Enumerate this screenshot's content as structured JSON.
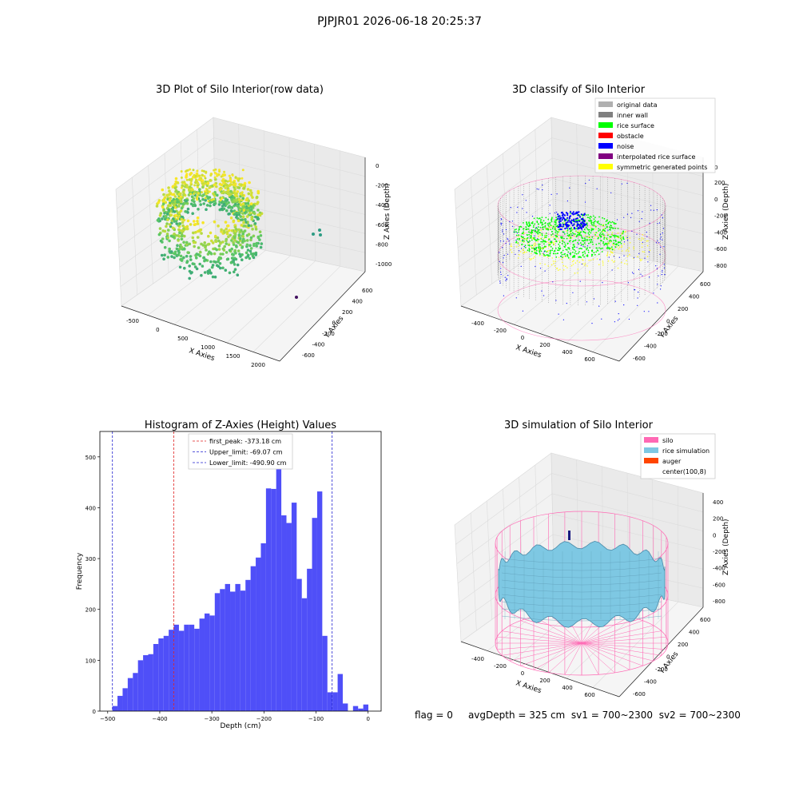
{
  "figure_title": "PJPJR01 2026-06-18 20:25:37",
  "status": {
    "flag": "flag = 0",
    "avg_depth": "avgDepth = 325 cm",
    "sv1": "sv1 = 700~2300",
    "sv2": "sv2 = 700~2300"
  },
  "colors": {
    "hist_bar": "#4f4ff8",
    "first_peak_line": "#e02020",
    "limit_line": "#2020d0",
    "silo_wire": "#ff69b4",
    "rice": "#7ec8e3",
    "auger": "#ff4500",
    "inner_wall": "#808080",
    "rice_surface": "#00ff00",
    "noise": "#0000ff",
    "obstacle": "#ff0000",
    "original_data": "#b0b0b0",
    "interpolated": "#800080",
    "symmetric": "#ffff00"
  },
  "chart_data": [
    {
      "type": "scatter",
      "subtype": "3d",
      "title": "3D Plot of Silo Interior(row data)",
      "xlabel": "X Axies",
      "ylabel": "Y Axies",
      "zlabel": "Z Axies (Depth)",
      "x_ticks": [
        "-500",
        "0",
        "500",
        "1000",
        "1500",
        "2000"
      ],
      "y_ticks": [
        "600",
        "400",
        "200",
        "0",
        "-200",
        "-400",
        "-600"
      ],
      "z_ticks": [
        "0",
        "-200",
        "-400",
        "-600",
        "-800",
        "-1000"
      ],
      "colormap": "viridis",
      "grid": true
    },
    {
      "type": "scatter",
      "subtype": "3d",
      "title": "3D classify of Silo Interior",
      "xlabel": "X Axies",
      "ylabel": "Y Axies",
      "zlabel": "Z Axies (Depth)",
      "x_ticks": [
        "-400",
        "-200",
        "0",
        "200",
        "400",
        "600"
      ],
      "y_ticks": [
        "600",
        "400",
        "200",
        "0",
        "-200",
        "-400",
        "-600"
      ],
      "z_ticks": [
        "200",
        "0",
        "-200",
        "-400",
        "-600",
        "-800"
      ],
      "z_top_tick": "0",
      "legend": [
        {
          "name": "original data",
          "color": "#b0b0b0"
        },
        {
          "name": "inner wall",
          "color": "#808080"
        },
        {
          "name": "rice surface",
          "color": "#00ff00"
        },
        {
          "name": "obstacle",
          "color": "#ff0000"
        },
        {
          "name": "noise",
          "color": "#0000ff"
        },
        {
          "name": "interpolated rice surface",
          "color": "#800080"
        },
        {
          "name": "symmetric generated points",
          "color": "#ffff00"
        }
      ],
      "legend_position": "upper right",
      "grid": true
    },
    {
      "type": "bar",
      "subtype": "histogram",
      "title": "Histogram of Z-Axies (Height) Values",
      "xlabel": "Depth (cm)",
      "ylabel": "Frequency",
      "xlim": [
        -515,
        25
      ],
      "ylim": [
        0,
        550
      ],
      "x_ticks": [
        -500,
        -400,
        -300,
        -200,
        -100,
        0
      ],
      "y_ticks": [
        0,
        100,
        200,
        300,
        400,
        500
      ],
      "bin_start": -491,
      "bin_width": 9.83,
      "values": [
        10,
        30,
        45,
        65,
        75,
        100,
        110,
        112,
        132,
        143,
        148,
        160,
        170,
        158,
        170,
        170,
        162,
        182,
        192,
        188,
        232,
        240,
        250,
        235,
        250,
        237,
        258,
        285,
        302,
        330,
        438,
        437,
        520,
        385,
        370,
        410,
        260,
        222,
        280,
        380,
        432,
        148,
        37,
        37,
        73,
        15,
        0,
        10,
        5,
        13
      ],
      "lines": [
        {
          "label": "first_peak: -373.18 cm",
          "x": -373.18,
          "color": "#e02020"
        },
        {
          "label": "Upper_limit: -69.07 cm",
          "x": -69.07,
          "color": "#2020d0"
        },
        {
          "label": "Lower_limit: -490.90 cm",
          "x": -490.9,
          "color": "#2020d0"
        }
      ],
      "legend_position": "upper center"
    },
    {
      "type": "area",
      "subtype": "3d-surface",
      "title": "3D simulation of Silo Interior",
      "xlabel": "X Axies",
      "ylabel": "Y Axies",
      "zlabel": "Z Axies (Depth)",
      "x_ticks": [
        "-400",
        "-200",
        "0",
        "200",
        "400",
        "600"
      ],
      "y_ticks": [
        "600",
        "400",
        "200",
        "0",
        "-200",
        "-400",
        "-600"
      ],
      "z_ticks": [
        "400",
        "200",
        "0",
        "-200",
        "-400",
        "-600",
        "-800"
      ],
      "legend": [
        {
          "name": "silo",
          "color": "#ff69b4"
        },
        {
          "name": "rice simulation",
          "color": "#7ec8e3"
        },
        {
          "name": "auger",
          "color": "#ff4500"
        },
        {
          "name": "center(100,8)",
          "color": "none"
        }
      ],
      "legend_position": "upper right",
      "grid": true
    }
  ]
}
